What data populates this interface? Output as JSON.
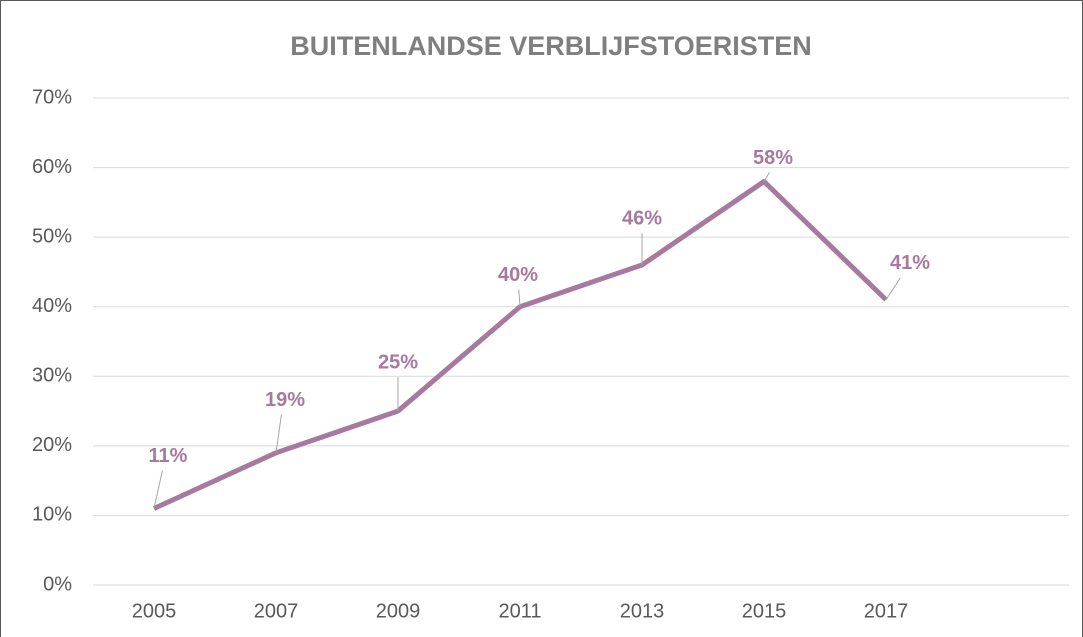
{
  "chart_data": {
    "type": "line",
    "title": "BUITENLANDSE VERBLIJFSTOERISTEN",
    "categories": [
      "2005",
      "2007",
      "2009",
      "2011",
      "2013",
      "2015",
      "2017",
      null
    ],
    "series": [
      {
        "name": "Buitenlandse verblijfstoeristen",
        "color": "#a8799f",
        "values": [
          11,
          19,
          25,
          40,
          46,
          58,
          41,
          null
        ],
        "value_labels": [
          "11%",
          "19%",
          "25%",
          "40%",
          "46%",
          "58%",
          "41%",
          null
        ]
      }
    ],
    "ylim": [
      0,
      70
    ],
    "yticks": [
      {
        "value": 0,
        "label": "0%"
      },
      {
        "value": 10,
        "label": "10%"
      },
      {
        "value": 20,
        "label": "20%"
      },
      {
        "value": 30,
        "label": "30%"
      },
      {
        "value": 40,
        "label": "40%"
      },
      {
        "value": 50,
        "label": "50%"
      },
      {
        "value": 60,
        "label": "60%"
      },
      {
        "value": 70,
        "label": "70%"
      }
    ],
    "grid": true
  }
}
